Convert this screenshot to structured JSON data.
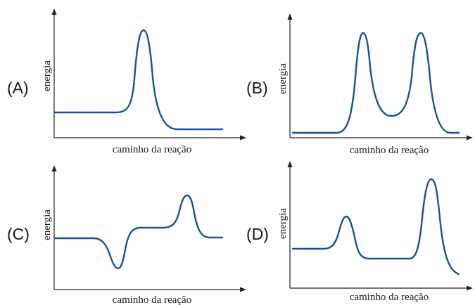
{
  "panels": [
    {
      "id": "A",
      "letter": "(A)",
      "ylabel": "energia",
      "xlabel": "caminho da reação",
      "profile": "single peak, products lower than reactants"
    },
    {
      "id": "B",
      "letter": "(B)",
      "ylabel": "energia",
      "xlabel": "caminho da reação",
      "profile": "two equal peaks with intermediate, reactants and products at same level"
    },
    {
      "id": "C",
      "letter": "(C)",
      "ylabel": "energia",
      "xlabel": "caminho da reação",
      "profile": "dip then plateau then peak"
    },
    {
      "id": "D",
      "letter": "(D)",
      "ylabel": "energia",
      "xlabel": "caminho da reação",
      "profile": "small peak then tall peak, products lowest"
    }
  ],
  "colors": {
    "curve": "#1f4e9a",
    "axis": "#222222",
    "text": "#1a1a1a"
  }
}
